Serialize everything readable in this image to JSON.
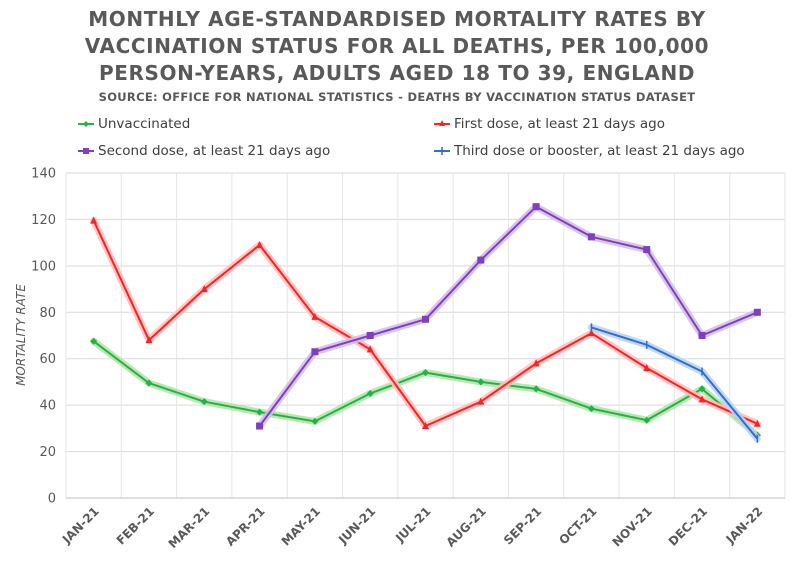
{
  "chart_data": {
    "type": "line",
    "title": "MONTHLY AGE-STANDARDISED MORTALITY RATES BY VACCINATION STATUS FOR ALL DEATHS, PER 100,000 PERSON-YEARS, ADULTS AGED 18 TO 39, ENGLAND",
    "title_lines": [
      "MONTHLY AGE-STANDARDISED MORTALITY RATES BY",
      "VACCINATION STATUS FOR ALL DEATHS, PER 100,000",
      "PERSON-YEARS, ADULTS AGED 18 TO 39, ENGLAND"
    ],
    "subtitle": "SOURCE: OFFICE FOR NATIONAL STATISTICS - DEATHS BY VACCINATION STATUS DATASET",
    "xlabel": "",
    "ylabel": "MORTALITY RATE",
    "ylim": [
      0,
      140
    ],
    "yticks": [
      0,
      20,
      40,
      60,
      80,
      100,
      120,
      140
    ],
    "grid": true,
    "legend_position": "top",
    "categories": [
      "JAN-21",
      "FEB-21",
      "MAR-21",
      "APR-21",
      "MAY-21",
      "JUN-21",
      "JUL-21",
      "AUG-21",
      "SEP-21",
      "OCT-21",
      "NOV-21",
      "DEC-21",
      "JAN-22"
    ],
    "series": [
      {
        "name": "Unvaccinated",
        "color": "#22b14c",
        "glow": "#b5e6a6",
        "marker": "diamond",
        "values": [
          67.5,
          49.5,
          41.5,
          37,
          33,
          45,
          54,
          50,
          47,
          38.5,
          33.5,
          47,
          27
        ]
      },
      {
        "name": "First dose, at least 21 days ago",
        "color": "#ff2020",
        "glow": "#ffc0c0",
        "marker": "triangle",
        "values": [
          119.5,
          68,
          90,
          109,
          78,
          64,
          31,
          41.5,
          58,
          71,
          56,
          42.5,
          32
        ]
      },
      {
        "name": "Second dose, at least 21 days ago",
        "color": "#7f3fbf",
        "glow": "#d4bfe6",
        "marker": "square",
        "values": [
          null,
          null,
          null,
          31,
          63,
          70,
          77,
          102.5,
          125.5,
          112.5,
          107,
          70,
          80
        ]
      },
      {
        "name": "Third dose or booster, at least 21 days ago",
        "color": "#2e6fd1",
        "glow": "#bcd3f0",
        "marker": "plus",
        "values": [
          null,
          null,
          null,
          null,
          null,
          null,
          null,
          null,
          null,
          73.5,
          66,
          54.5,
          25.5
        ]
      }
    ]
  }
}
